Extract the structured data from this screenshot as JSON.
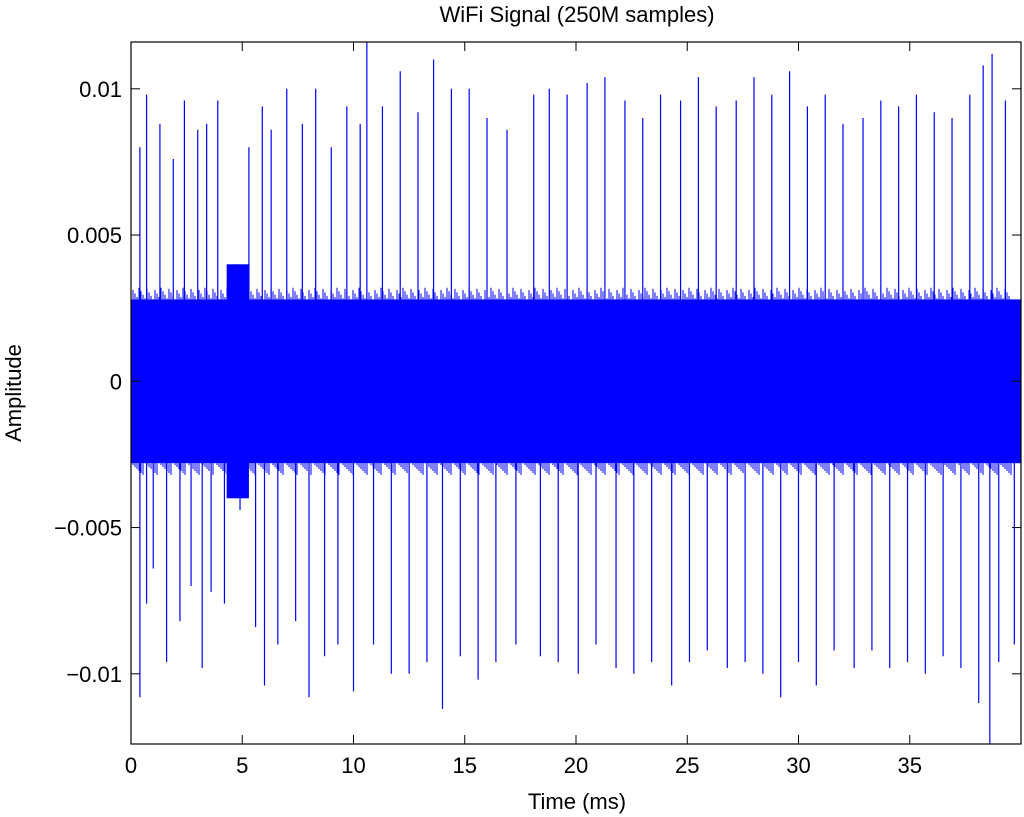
{
  "chart_data": {
    "type": "line",
    "title": "WiFi Signal (250M samples)",
    "xlabel": "Time (ms)",
    "ylabel": "Amplitude",
    "xlim": [
      0,
      40
    ],
    "ylim": [
      -0.0124,
      0.0116
    ],
    "x_ticks": [
      0,
      5,
      10,
      15,
      20,
      25,
      30,
      35
    ],
    "x_tick_labels": [
      "0",
      "5",
      "10",
      "15",
      "20",
      "25",
      "30",
      "35"
    ],
    "y_ticks": [
      0.01,
      0.005,
      0,
      -0.005,
      -0.01
    ],
    "y_tick_labels": [
      "0.01",
      "0.005",
      "0",
      "−0.005",
      "−0.01"
    ],
    "grid": false,
    "legend": "none",
    "series": [
      {
        "color": "#0000ff",
        "noise_band": [
          -0.0028,
          0.0028
        ],
        "noise_band_upper_edge": 0.0032,
        "burst_region": {
          "x_range": [
            4.3,
            5.3
          ],
          "y_range": [
            -0.004,
            0.004
          ]
        },
        "peaks": [
          {
            "x": 0.4,
            "y": 0.008
          },
          {
            "x": 0.4,
            "y": -0.0108
          },
          {
            "x": 0.7,
            "y": 0.0098
          },
          {
            "x": 0.7,
            "y": -0.0076
          },
          {
            "x": 1.0,
            "y": -0.0064
          },
          {
            "x": 1.3,
            "y": 0.0088
          },
          {
            "x": 1.6,
            "y": -0.0096
          },
          {
            "x": 1.9,
            "y": 0.0076
          },
          {
            "x": 2.2,
            "y": -0.0082
          },
          {
            "x": 2.4,
            "y": 0.0096
          },
          {
            "x": 2.7,
            "y": -0.007
          },
          {
            "x": 3.0,
            "y": 0.0086
          },
          {
            "x": 3.2,
            "y": -0.0098
          },
          {
            "x": 3.4,
            "y": 0.0088
          },
          {
            "x": 3.6,
            "y": -0.0072
          },
          {
            "x": 3.9,
            "y": 0.0096
          },
          {
            "x": 4.2,
            "y": -0.0076
          },
          {
            "x": 4.7,
            "y": 0.004
          },
          {
            "x": 4.9,
            "y": -0.0044
          },
          {
            "x": 5.3,
            "y": 0.008
          },
          {
            "x": 5.6,
            "y": -0.0084
          },
          {
            "x": 5.9,
            "y": 0.0094
          },
          {
            "x": 6.0,
            "y": -0.0104
          },
          {
            "x": 6.3,
            "y": 0.0086
          },
          {
            "x": 6.6,
            "y": -0.009
          },
          {
            "x": 7.0,
            "y": 0.01
          },
          {
            "x": 7.4,
            "y": -0.0082
          },
          {
            "x": 7.7,
            "y": 0.0088
          },
          {
            "x": 8.0,
            "y": -0.0108
          },
          {
            "x": 8.3,
            "y": 0.01
          },
          {
            "x": 8.7,
            "y": -0.0094
          },
          {
            "x": 9.0,
            "y": 0.008
          },
          {
            "x": 9.3,
            "y": -0.009
          },
          {
            "x": 9.7,
            "y": 0.0094
          },
          {
            "x": 10.0,
            "y": -0.0106
          },
          {
            "x": 10.3,
            "y": 0.0088
          },
          {
            "x": 10.6,
            "y": 0.0116
          },
          {
            "x": 10.9,
            "y": -0.009
          },
          {
            "x": 11.3,
            "y": 0.0094
          },
          {
            "x": 11.7,
            "y": -0.01
          },
          {
            "x": 12.1,
            "y": 0.0106
          },
          {
            "x": 12.5,
            "y": -0.01
          },
          {
            "x": 12.9,
            "y": 0.0092
          },
          {
            "x": 13.3,
            "y": -0.0096
          },
          {
            "x": 13.6,
            "y": 0.011
          },
          {
            "x": 14.0,
            "y": -0.0112
          },
          {
            "x": 14.4,
            "y": 0.01
          },
          {
            "x": 14.8,
            "y": -0.0094
          },
          {
            "x": 15.2,
            "y": 0.01
          },
          {
            "x": 15.6,
            "y": -0.0102
          },
          {
            "x": 16.0,
            "y": 0.009
          },
          {
            "x": 16.4,
            "y": -0.0096
          },
          {
            "x": 16.9,
            "y": 0.0086
          },
          {
            "x": 17.3,
            "y": -0.009
          },
          {
            "x": 18.1,
            "y": 0.0098
          },
          {
            "x": 18.4,
            "y": -0.0094
          },
          {
            "x": 18.8,
            "y": 0.01
          },
          {
            "x": 19.2,
            "y": -0.0096
          },
          {
            "x": 19.6,
            "y": 0.0098
          },
          {
            "x": 20.1,
            "y": -0.01
          },
          {
            "x": 20.5,
            "y": 0.0102
          },
          {
            "x": 20.9,
            "y": -0.009
          },
          {
            "x": 21.3,
            "y": 0.0104
          },
          {
            "x": 21.8,
            "y": -0.0098
          },
          {
            "x": 22.2,
            "y": 0.0096
          },
          {
            "x": 22.6,
            "y": -0.01
          },
          {
            "x": 23.0,
            "y": 0.009
          },
          {
            "x": 23.4,
            "y": -0.0096
          },
          {
            "x": 23.8,
            "y": 0.0098
          },
          {
            "x": 24.3,
            "y": -0.0104
          },
          {
            "x": 24.7,
            "y": 0.0096
          },
          {
            "x": 25.1,
            "y": -0.0096
          },
          {
            "x": 25.5,
            "y": 0.0104
          },
          {
            "x": 25.9,
            "y": -0.0092
          },
          {
            "x": 26.3,
            "y": 0.0094
          },
          {
            "x": 26.8,
            "y": -0.0098
          },
          {
            "x": 27.2,
            "y": 0.0096
          },
          {
            "x": 27.6,
            "y": -0.0096
          },
          {
            "x": 28.0,
            "y": 0.0104
          },
          {
            "x": 28.4,
            "y": -0.01
          },
          {
            "x": 28.8,
            "y": 0.0098
          },
          {
            "x": 29.2,
            "y": -0.0108
          },
          {
            "x": 29.6,
            "y": 0.0106
          },
          {
            "x": 30.0,
            "y": -0.0096
          },
          {
            "x": 30.4,
            "y": 0.0094
          },
          {
            "x": 30.8,
            "y": -0.0104
          },
          {
            "x": 31.2,
            "y": 0.0098
          },
          {
            "x": 31.6,
            "y": -0.0092
          },
          {
            "x": 32.0,
            "y": 0.0088
          },
          {
            "x": 32.5,
            "y": -0.0098
          },
          {
            "x": 32.9,
            "y": 0.009
          },
          {
            "x": 33.3,
            "y": -0.0092
          },
          {
            "x": 33.7,
            "y": 0.0096
          },
          {
            "x": 34.1,
            "y": -0.0098
          },
          {
            "x": 34.5,
            "y": 0.0094
          },
          {
            "x": 34.9,
            "y": -0.0096
          },
          {
            "x": 35.3,
            "y": 0.0098
          },
          {
            "x": 35.7,
            "y": -0.01
          },
          {
            "x": 36.1,
            "y": 0.0092
          },
          {
            "x": 36.5,
            "y": -0.0094
          },
          {
            "x": 36.9,
            "y": 0.009
          },
          {
            "x": 37.3,
            "y": -0.0098
          },
          {
            "x": 37.7,
            "y": 0.0098
          },
          {
            "x": 38.1,
            "y": -0.011
          },
          {
            "x": 38.3,
            "y": 0.0108
          },
          {
            "x": 38.6,
            "y": -0.0124
          },
          {
            "x": 38.7,
            "y": 0.0112
          },
          {
            "x": 39.0,
            "y": -0.0096
          },
          {
            "x": 39.3,
            "y": 0.0096
          },
          {
            "x": 39.7,
            "y": -0.009
          }
        ]
      }
    ]
  }
}
